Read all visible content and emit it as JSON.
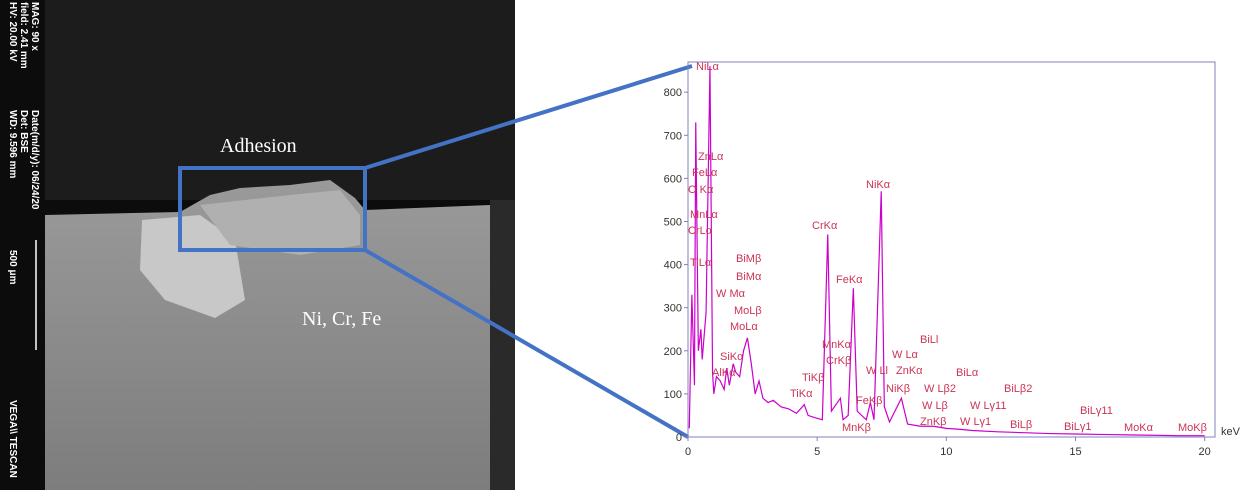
{
  "image": {
    "metadata": [
      "HV: 20.00 kV",
      "field: 2.41 mm",
      "MAG: 90 x"
    ],
    "metadata2": [
      "WD: 9.596 mm",
      "Det: BSE",
      "Date(m/d/y): 06/24/20"
    ],
    "scale_bar": "500 μm",
    "brand": "VEGA\\\\ TESCAN",
    "labels": [
      "Adhesion",
      "Ni, Cr, Fe"
    ]
  },
  "chart_data": {
    "type": "line",
    "x_label": "keV",
    "x": [
      0.05,
      0.15,
      0.25,
      0.3,
      0.4,
      0.5,
      0.55,
      0.7,
      0.85,
      0.95,
      1.0,
      1.1,
      1.25,
      1.4,
      1.5,
      1.6,
      1.75,
      1.85,
      2.0,
      2.15,
      2.3,
      2.45,
      2.6,
      2.75,
      2.9,
      3.1,
      3.3,
      3.6,
      3.9,
      4.2,
      4.5,
      4.65,
      4.9,
      5.2,
      5.41,
      5.55,
      5.9,
      6.0,
      6.2,
      6.4,
      6.55,
      6.9,
      7.06,
      7.2,
      7.48,
      7.6,
      7.8,
      8.26,
      8.5,
      9.0,
      9.5,
      10.0,
      10.5,
      11.0,
      12,
      13,
      14,
      15,
      16,
      17,
      18,
      19,
      20
    ],
    "series": [
      {
        "color": "#cc00cc",
        "values": [
          20,
          330,
          120,
          730,
          200,
          250,
          180,
          290,
          860,
          150,
          100,
          140,
          130,
          110,
          160,
          120,
          170,
          150,
          140,
          200,
          230,
          170,
          100,
          130,
          90,
          80,
          85,
          70,
          65,
          55,
          75,
          50,
          45,
          40,
          470,
          60,
          90,
          40,
          50,
          345,
          60,
          40,
          80,
          40,
          570,
          70,
          35,
          90,
          30,
          25,
          25,
          20,
          18,
          15,
          12,
          10,
          8,
          7,
          6,
          5,
          4,
          3,
          3
        ]
      }
    ],
    "xlim": [
      0,
      20.4
    ],
    "ylim": [
      0,
      870
    ],
    "xticks": [
      0,
      5,
      10,
      15,
      20
    ],
    "yticks": [
      0,
      100,
      200,
      300,
      400,
      500,
      600,
      700,
      800
    ],
    "peak_labels": [
      "NiLα",
      "ZnLα",
      "FeLα",
      "O Kα",
      "MnLα",
      "CrLα",
      "TiLα",
      "BiMβ",
      "BiMα",
      "W Mα",
      "MoLβ",
      "MoLα",
      "SiKα",
      "AlKα",
      "TiKβ",
      "TiKα",
      "CrKα",
      "MnKα",
      "CrKβ",
      "FeKα",
      "FeKβ",
      "MnKβ",
      "NiKα",
      "BiLl",
      "W Lα",
      "W Ll",
      "ZnKα",
      "NiKβ",
      "BiLα",
      "W Lβ2",
      "W Lβ",
      "ZnKβ",
      "W Lγ11",
      "W Lγ1",
      "BiLβ2",
      "BiLβ",
      "BiLγ11",
      "BiLγ1",
      "MoKα",
      "MoKβ"
    ]
  }
}
